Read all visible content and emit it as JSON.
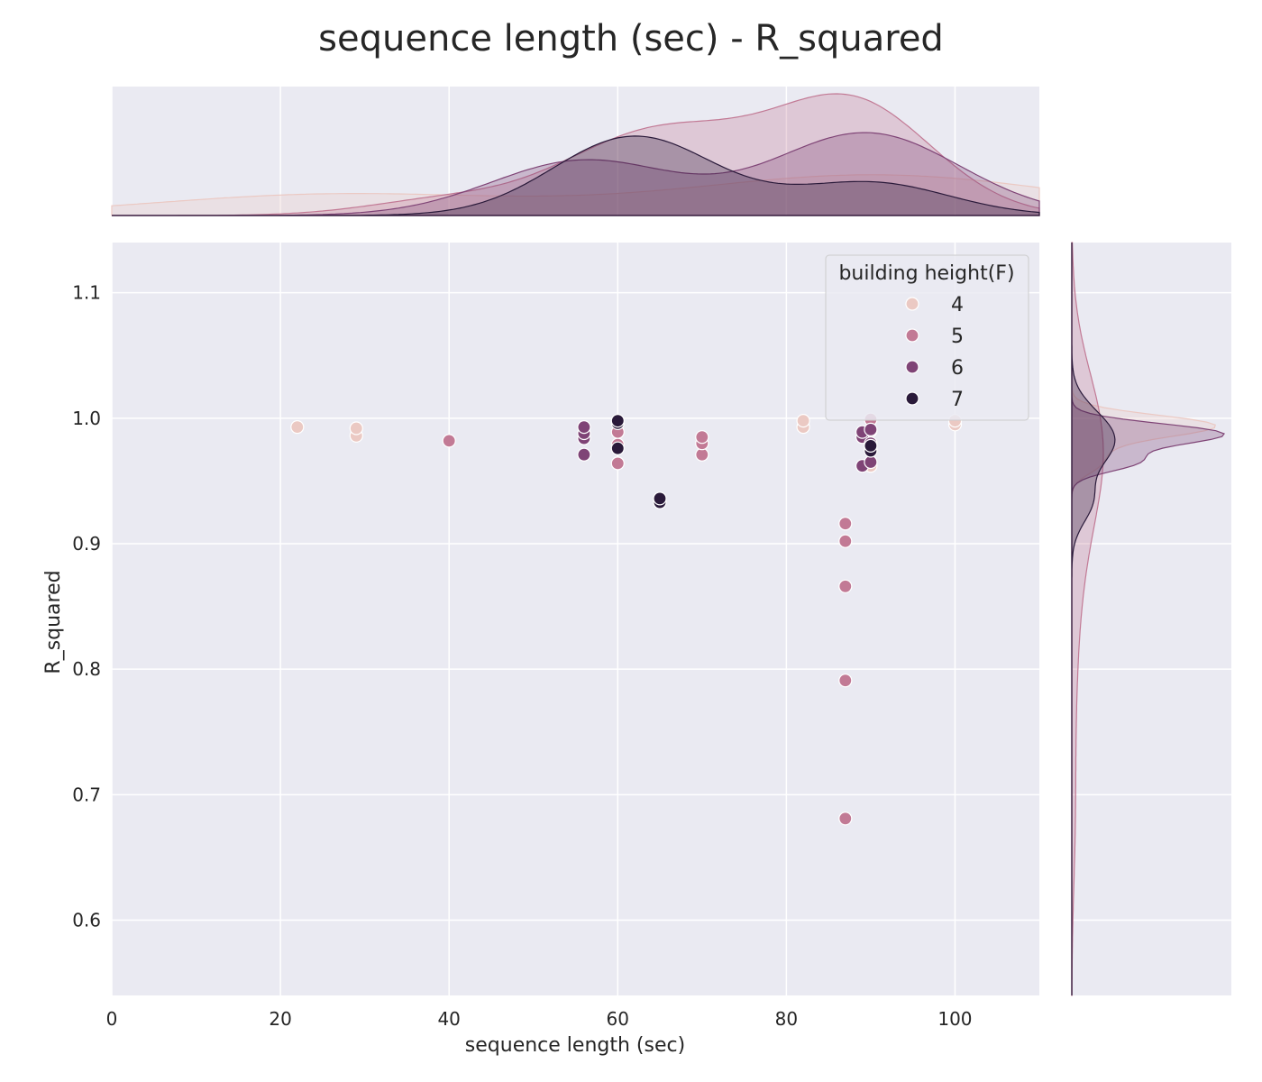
{
  "chart_data": {
    "type": "scatter",
    "title": "sequence length (sec) - R_squared",
    "xlabel": "sequence length (sec)",
    "ylabel": "R_squared",
    "xlim": [
      0,
      110
    ],
    "ylim": [
      0.54,
      1.14
    ],
    "xticks": [
      "0",
      "20",
      "40",
      "60",
      "80",
      "100"
    ],
    "yticks": [
      "0.6",
      "0.7",
      "0.8",
      "0.9",
      "1.0",
      "1.1"
    ],
    "grid": true,
    "marginal": "kde",
    "legend": {
      "title": "building height(F)",
      "position": "top-right",
      "entries": [
        "4",
        "5",
        "6",
        "7"
      ]
    },
    "colors": {
      "4": "#ebc9c3",
      "5": "#c27a95",
      "6": "#7f4476",
      "7": "#2a1a3a"
    },
    "series": [
      {
        "name": "4",
        "points": [
          [
            22,
            0.993
          ],
          [
            29,
            0.986
          ],
          [
            29,
            0.992
          ],
          [
            82,
            0.993
          ],
          [
            82,
            0.998
          ],
          [
            90,
            0.962
          ],
          [
            90,
            0.975
          ],
          [
            100,
            0.995
          ],
          [
            100,
            0.998
          ]
        ]
      },
      {
        "name": "5",
        "points": [
          [
            40,
            0.982
          ],
          [
            60,
            0.964
          ],
          [
            60,
            0.979
          ],
          [
            60,
            0.989
          ],
          [
            70,
            0.971
          ],
          [
            70,
            0.98
          ],
          [
            70,
            0.985
          ],
          [
            87,
            0.916
          ],
          [
            87,
            0.902
          ],
          [
            87,
            0.866
          ],
          [
            87,
            0.791
          ],
          [
            87,
            0.681
          ],
          [
            90,
            0.999
          ],
          [
            90,
            0.99
          ]
        ]
      },
      {
        "name": "6",
        "points": [
          [
            56,
            0.971
          ],
          [
            56,
            0.984
          ],
          [
            56,
            0.988
          ],
          [
            56,
            0.993
          ],
          [
            89,
            0.962
          ],
          [
            89,
            0.985
          ],
          [
            89,
            0.989
          ],
          [
            90,
            0.965
          ],
          [
            90,
            0.98
          ],
          [
            90,
            0.991
          ]
        ]
      },
      {
        "name": "7",
        "points": [
          [
            60,
            0.976
          ],
          [
            60,
            0.996
          ],
          [
            60,
            0.998
          ],
          [
            65,
            0.933
          ],
          [
            65,
            0.936
          ],
          [
            90,
            0.974
          ],
          [
            90,
            0.978
          ]
        ]
      }
    ]
  }
}
